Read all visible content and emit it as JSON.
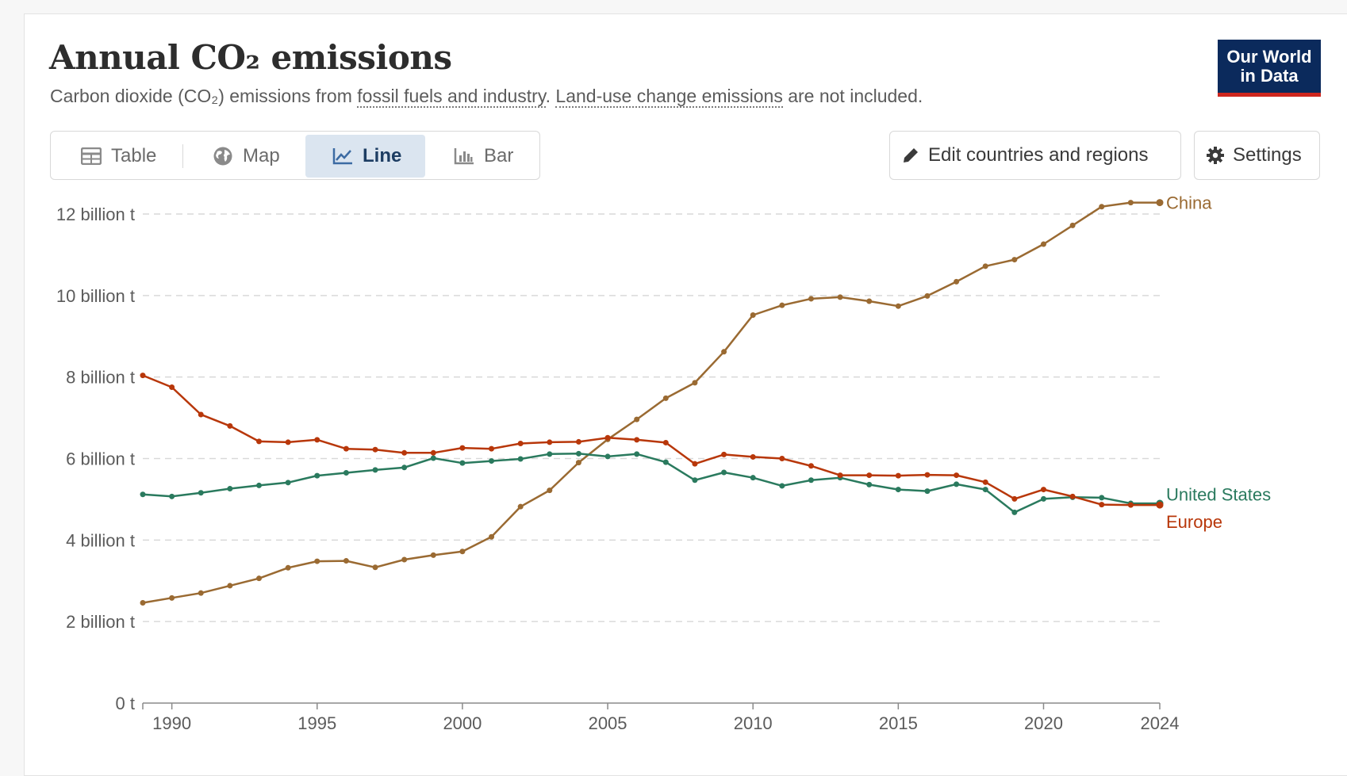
{
  "header": {
    "title": "Annual CO₂ emissions",
    "subtitle_prefix": "Carbon dioxide (CO₂) emissions from ",
    "subtitle_link1": "fossil fuels and industry",
    "subtitle_mid": ". ",
    "subtitle_link2": "Land-use change emissions",
    "subtitle_suffix": " are not included."
  },
  "logo": {
    "line1": "Our World",
    "line2": "in Data"
  },
  "tabs": [
    {
      "label": "Table",
      "icon": "table-icon",
      "active": false
    },
    {
      "label": "Map",
      "icon": "globe-icon",
      "active": false
    },
    {
      "label": "Line",
      "icon": "line-chart-icon",
      "active": true
    },
    {
      "label": "Bar",
      "icon": "bar-chart-icon",
      "active": false
    }
  ],
  "buttons": {
    "edit_label": "Edit countries and regions",
    "settings_label": "Settings"
  },
  "colors": {
    "china": "#9a6a32",
    "europe": "#b8370a",
    "united_states": "#2a7a5e",
    "grid": "#d9d9d9",
    "axis_text": "#5b5b5b"
  },
  "chart_data": {
    "type": "line",
    "title": "Annual CO₂ emissions",
    "ylim": [
      0,
      12
    ],
    "xlim": [
      1989,
      2024
    ],
    "y_ticks": [
      0,
      2,
      4,
      6,
      8,
      10,
      12
    ],
    "y_tick_labels": [
      "0 t",
      "2 billion t",
      "4 billion t",
      "6 billion t",
      "8 billion t",
      "10 billion t",
      "12 billion t"
    ],
    "x_ticks": [
      1990,
      1995,
      2000,
      2005,
      2010,
      2015,
      2020,
      2024
    ],
    "x_tick_labels": [
      "1990",
      "1995",
      "2000",
      "2005",
      "2010",
      "2015",
      "2020",
      "2024"
    ],
    "grid": true,
    "legend": "inline-right",
    "x": [
      1989,
      1990,
      1991,
      1992,
      1993,
      1994,
      1995,
      1996,
      1997,
      1998,
      1999,
      2000,
      2001,
      2002,
      2003,
      2004,
      2005,
      2006,
      2007,
      2008,
      2009,
      2010,
      2011,
      2012,
      2013,
      2014,
      2015,
      2016,
      2017,
      2018,
      2019,
      2020,
      2021,
      2022,
      2023,
      2024
    ],
    "series": [
      {
        "name": "China",
        "color": "#9a6a32",
        "values": [
          2.46,
          2.58,
          2.7,
          2.88,
          3.06,
          3.32,
          3.48,
          3.49,
          3.33,
          3.52,
          3.63,
          3.72,
          4.08,
          4.82,
          5.22,
          5.9,
          6.47,
          6.96,
          7.48,
          7.86,
          8.62,
          9.52,
          9.76,
          9.92,
          9.96,
          9.86,
          9.74,
          9.99,
          10.34,
          10.72,
          10.88,
          11.26,
          11.72,
          12.18,
          12.28,
          12.28
        ]
      },
      {
        "name": "United States",
        "color": "#2a7a5e",
        "values": [
          5.12,
          5.07,
          5.16,
          5.26,
          5.34,
          5.41,
          5.58,
          5.65,
          5.72,
          5.78,
          6.01,
          5.89,
          5.94,
          5.99,
          6.11,
          6.12,
          6.05,
          6.11,
          5.91,
          5.47,
          5.66,
          5.53,
          5.33,
          5.47,
          5.53,
          5.36,
          5.24,
          5.2,
          5.37,
          5.24,
          4.68,
          5.01,
          5.05,
          5.04,
          4.9,
          4.9
        ]
      },
      {
        "name": "Europe",
        "color": "#b8370a",
        "values": [
          8.04,
          7.75,
          7.08,
          6.8,
          6.42,
          6.4,
          6.46,
          6.24,
          6.22,
          6.14,
          6.14,
          6.26,
          6.24,
          6.37,
          6.4,
          6.41,
          6.51,
          6.46,
          6.39,
          5.87,
          6.1,
          6.04,
          6.0,
          5.82,
          5.59,
          5.59,
          5.58,
          5.6,
          5.59,
          5.42,
          5.01,
          5.24,
          5.07,
          4.87,
          4.86,
          4.86
        ]
      }
    ]
  }
}
